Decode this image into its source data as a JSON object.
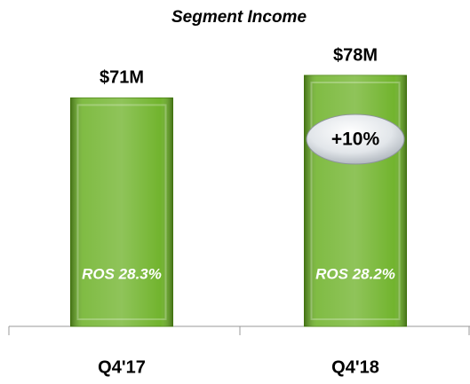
{
  "chart_data": {
    "type": "bar",
    "title": "Segment Income",
    "categories": [
      "Q4'17",
      "Q4'18"
    ],
    "values": [
      71,
      78
    ],
    "value_labels": [
      "$71M",
      "$78M"
    ],
    "color": "#6ab023",
    "ros_labels": [
      "ROS 28.3%",
      "ROS 28.2%"
    ],
    "annotation": "+10%"
  }
}
